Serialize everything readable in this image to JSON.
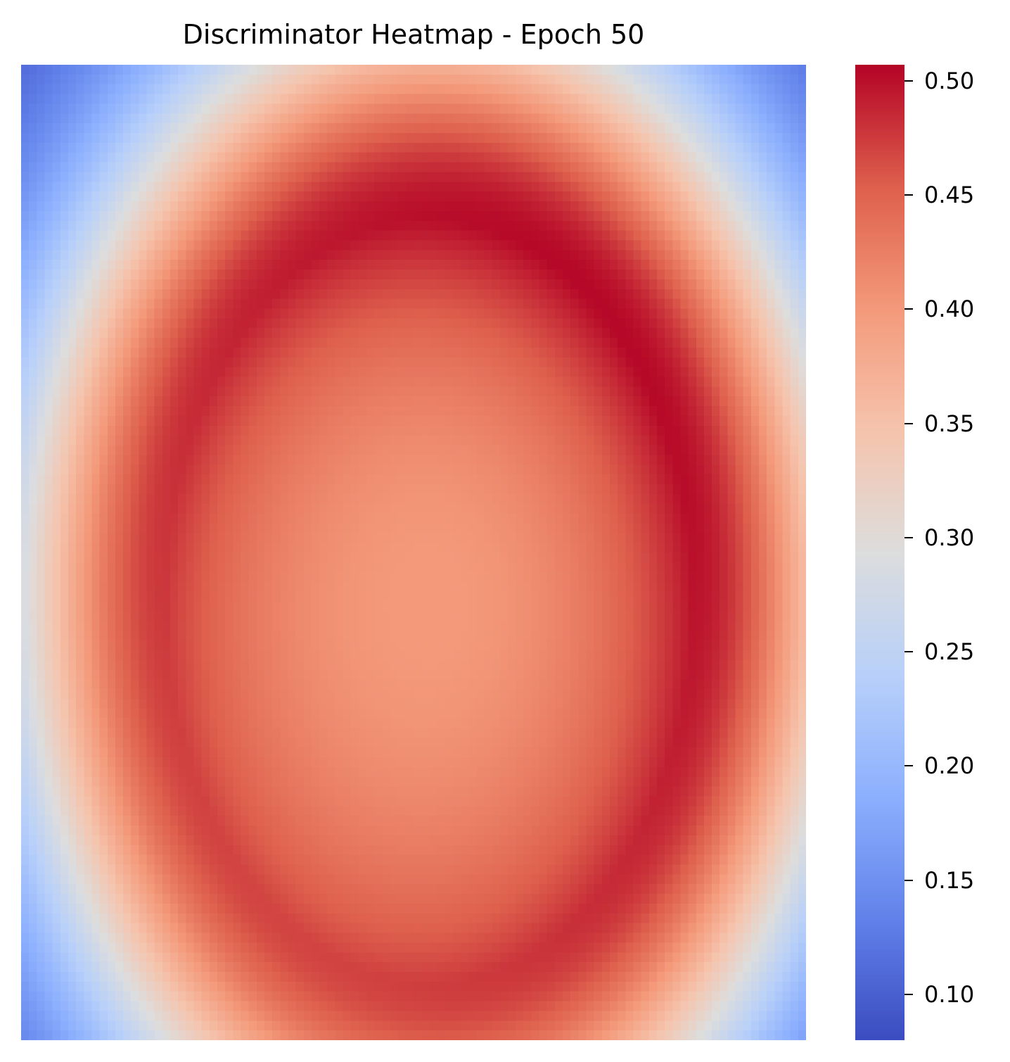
{
  "chart_data": {
    "type": "heatmap",
    "title": "Discriminator Heatmap - Epoch 50",
    "xlabel": "",
    "ylabel": "",
    "colormap": "coolwarm",
    "grid": false,
    "axes_visible": false,
    "rows": 100,
    "cols": 100,
    "vmin": 0.08,
    "vmax": 0.507,
    "colorbar": {
      "ticks": [
        0.1,
        0.15,
        0.2,
        0.25,
        0.3,
        0.35,
        0.4,
        0.45,
        0.5
      ],
      "tick_labels": [
        "0.10",
        "0.15",
        "0.20",
        "0.25",
        "0.30",
        "0.35",
        "0.40",
        "0.45",
        "0.50"
      ],
      "placement": "right"
    },
    "field": {
      "description_values": "ring-shaped field: low at corners, peak ring, moderate center",
      "center": [
        0.52,
        0.55
      ],
      "ring_radius": [
        0.36,
        0.42
      ],
      "corner_value": 0.085,
      "ring_peak_value": 0.505,
      "center_value": 0.4
    }
  },
  "colors": {
    "cold": "#3b4cc0",
    "neutral": "#dddcdc",
    "hot": "#b40426",
    "text": "#000000"
  }
}
